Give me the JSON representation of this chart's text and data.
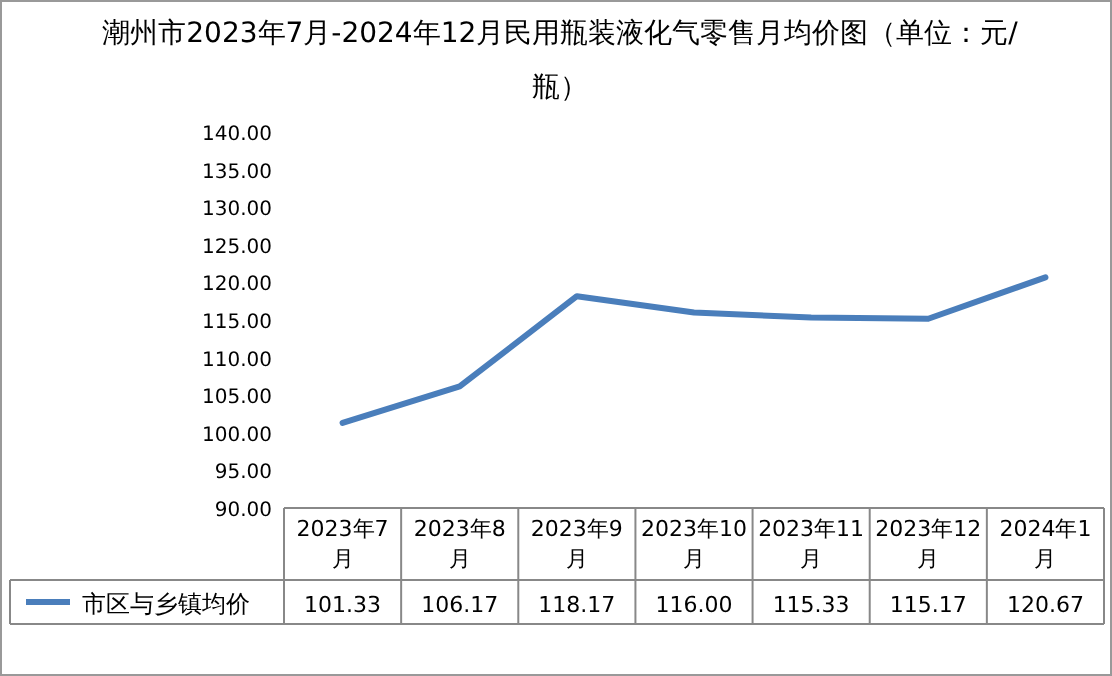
{
  "chart_data": {
    "type": "line",
    "title": "潮州市2023年7月-2024年12月民用瓶装液化气零售月均价图（单位：元/瓶）",
    "categories": [
      "2023年7月",
      "2023年8月",
      "2023年9月",
      "2023年10月",
      "2023年11月",
      "2023年12月",
      "2024年1月"
    ],
    "series": [
      {
        "name": "市区与乡镇均价",
        "color": "#4a7ebb",
        "values": [
          101.33,
          106.17,
          118.17,
          116.0,
          115.33,
          115.17,
          120.67
        ],
        "value_labels": [
          "101.33",
          "106.17",
          "118.17",
          "116.00",
          "115.33",
          "115.17",
          "120.67"
        ]
      }
    ],
    "ylim": [
      90,
      140
    ],
    "yticks": [
      {
        "value": 90,
        "label": "90.00"
      },
      {
        "value": 95,
        "label": "95.00"
      },
      {
        "value": 100,
        "label": "100.00"
      },
      {
        "value": 105,
        "label": "105.00"
      },
      {
        "value": 110,
        "label": "110.00"
      },
      {
        "value": 115,
        "label": "115.00"
      },
      {
        "value": 120,
        "label": "120.00"
      },
      {
        "value": 125,
        "label": "125.00"
      },
      {
        "value": 130,
        "label": "130.00"
      },
      {
        "value": 135,
        "label": "135.00"
      },
      {
        "value": 140,
        "label": "140.00"
      }
    ],
    "grid": false,
    "marker": "none",
    "line_style": "solid"
  }
}
